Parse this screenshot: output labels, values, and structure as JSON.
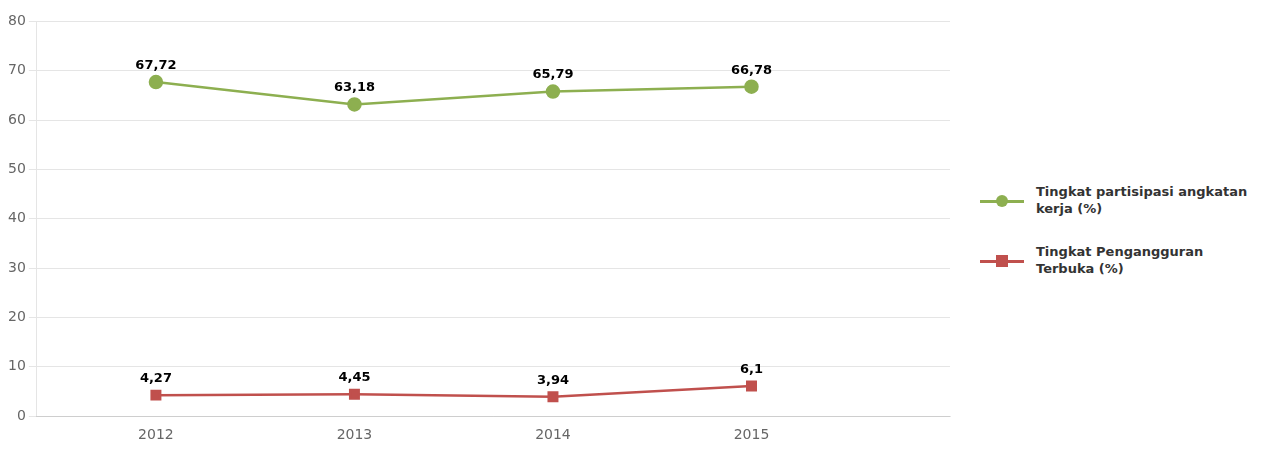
{
  "chart_data": {
    "type": "line",
    "x": [
      2012,
      2013,
      2014,
      2015
    ],
    "xlim": [
      2011.4,
      2016.0
    ],
    "xticks": [
      2012,
      2013,
      2014,
      2015
    ],
    "ylim": [
      0,
      80
    ],
    "yticks": [
      0,
      10,
      20,
      30,
      40,
      50,
      60,
      70,
      80
    ],
    "grid": true,
    "legend": "right",
    "data_labels": true,
    "series": [
      {
        "name": "Tingkat partisipasi angkatan\nkerja (%)",
        "color": "#8DAF50",
        "marker": "circle",
        "values": [
          67.72,
          63.18,
          65.79,
          66.78
        ],
        "value_labels": [
          "67,72",
          "63,18",
          "65,79",
          "66,78"
        ]
      },
      {
        "name": "Tingkat Pengangguran\nTerbuka (%)",
        "color": "#C0504D",
        "marker": "square",
        "values": [
          4.27,
          4.45,
          3.94,
          6.1
        ],
        "value_labels": [
          "4,27",
          "4,45",
          "3,94",
          "6,1"
        ]
      }
    ]
  }
}
